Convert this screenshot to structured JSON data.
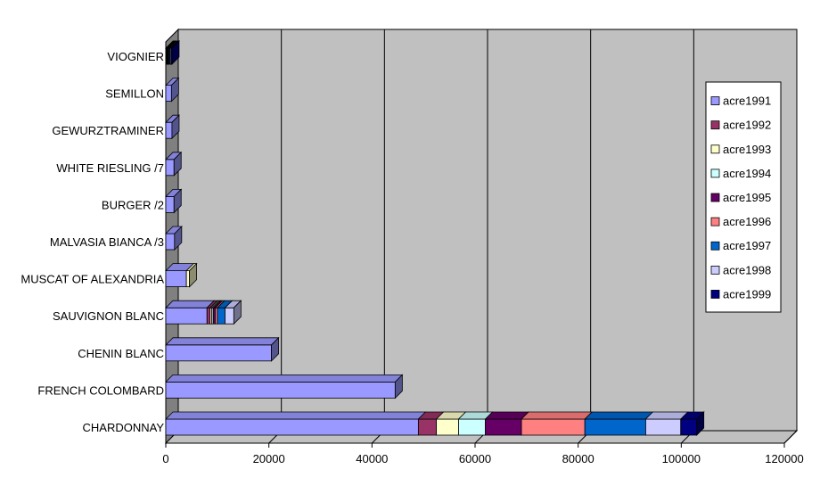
{
  "chart_data": {
    "type": "bar",
    "orientation": "horizontal",
    "stacked": true,
    "three_d": true,
    "categories": [
      "CHARDONNAY",
      "FRENCH COLOMBARD",
      "CHENIN BLANC",
      "SAUVIGNON BLANC",
      "MUSCAT OF ALEXANDRIA",
      "MALVASIA BIANCA /3",
      "BURGER /2",
      "WHITE RIESLING /7",
      "GEWURZTRAMINER",
      "SEMILLON",
      "VIOGNIER"
    ],
    "series": [
      {
        "name": "acre1991",
        "color": "#9999ff",
        "values": [
          49000,
          44500,
          20500,
          8000,
          4000,
          1700,
          1600,
          1600,
          1200,
          1100,
          100
        ]
      },
      {
        "name": "acre1992",
        "color": "#993366",
        "values": [
          3500,
          0,
          0,
          600,
          0,
          0,
          0,
          0,
          0,
          0,
          100
        ]
      },
      {
        "name": "acre1993",
        "color": "#ffffcc",
        "values": [
          4300,
          0,
          0,
          300,
          600,
          0,
          0,
          0,
          0,
          0,
          100
        ]
      },
      {
        "name": "acre1994",
        "color": "#ccffff",
        "values": [
          5200,
          0,
          0,
          300,
          0,
          0,
          0,
          0,
          0,
          0,
          100
        ]
      },
      {
        "name": "acre1995",
        "color": "#660066",
        "values": [
          7000,
          0,
          0,
          400,
          0,
          0,
          0,
          0,
          0,
          0,
          100
        ]
      },
      {
        "name": "acre1996",
        "color": "#ff8080",
        "values": [
          12300,
          0,
          0,
          400,
          0,
          0,
          0,
          0,
          0,
          0,
          100
        ]
      },
      {
        "name": "acre1997",
        "color": "#0066cc",
        "values": [
          11800,
          0,
          0,
          1500,
          0,
          0,
          0,
          0,
          0,
          0,
          200
        ]
      },
      {
        "name": "acre1998",
        "color": "#ccccff",
        "values": [
          6800,
          0,
          0,
          1700,
          0,
          0,
          0,
          0,
          0,
          0,
          200
        ]
      },
      {
        "name": "acre1999",
        "color": "#000080",
        "values": [
          3100,
          0,
          0,
          0,
          0,
          0,
          0,
          0,
          0,
          0,
          200
        ]
      }
    ],
    "x_ticks": [
      "0",
      "20000",
      "40000",
      "60000",
      "80000",
      "100000",
      "120000"
    ],
    "xlim": [
      0,
      120000
    ],
    "grid": true,
    "legend_position": "right",
    "title": "",
    "xlabel": "",
    "ylabel": ""
  }
}
